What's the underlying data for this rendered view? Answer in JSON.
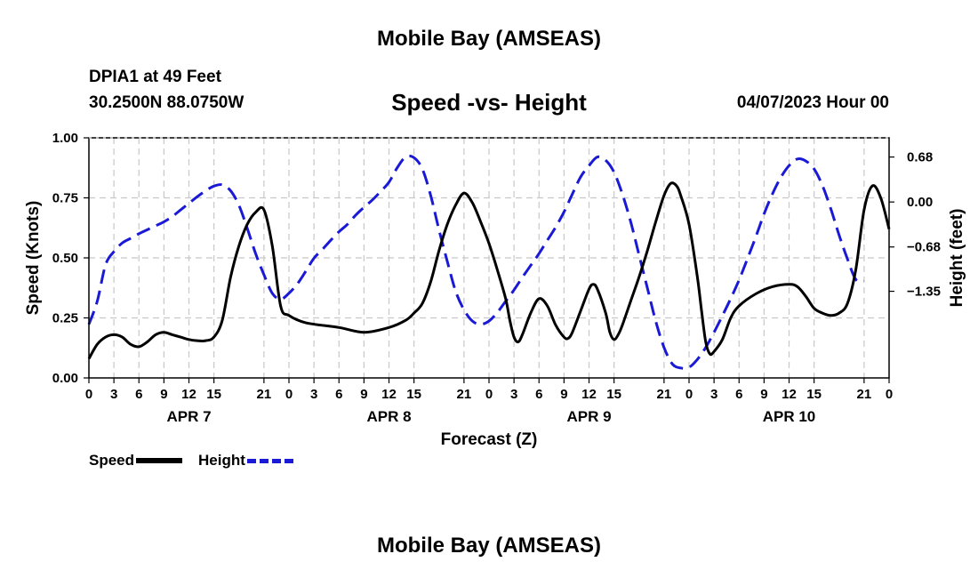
{
  "header": {
    "title": "Mobile Bay (AMSEAS)",
    "station": "DPIA1 at 49 Feet",
    "coords": "30.2500N  88.0750W",
    "subtitle": "Speed -vs- Height",
    "datetime": "04/07/2023 Hour 00"
  },
  "footer": {
    "title": "Mobile Bay (AMSEAS)"
  },
  "legend": {
    "speed_label": "Speed",
    "height_label": "Height"
  },
  "colors": {
    "speed": "#000000",
    "height": "#1a1ad6",
    "grid": "#c8c8c8"
  },
  "chart_data": {
    "type": "line",
    "xlabel": "Forecast (Z)",
    "ylabel": "Speed (Knots)",
    "y2label": "Height (feet)",
    "x_range": [
      0,
      96
    ],
    "x_ticks": [
      {
        "x": 0,
        "label": "0"
      },
      {
        "x": 3,
        "label": "3"
      },
      {
        "x": 6,
        "label": "6"
      },
      {
        "x": 9,
        "label": "9"
      },
      {
        "x": 12,
        "label": "12"
      },
      {
        "x": 15,
        "label": "15"
      },
      {
        "x": 21,
        "label": "21"
      },
      {
        "x": 24,
        "label": "0"
      },
      {
        "x": 27,
        "label": "3"
      },
      {
        "x": 30,
        "label": "6"
      },
      {
        "x": 33,
        "label": "9"
      },
      {
        "x": 36,
        "label": "12"
      },
      {
        "x": 39,
        "label": "15"
      },
      {
        "x": 45,
        "label": "21"
      },
      {
        "x": 48,
        "label": "0"
      },
      {
        "x": 51,
        "label": "3"
      },
      {
        "x": 54,
        "label": "6"
      },
      {
        "x": 57,
        "label": "9"
      },
      {
        "x": 60,
        "label": "12"
      },
      {
        "x": 63,
        "label": "15"
      },
      {
        "x": 69,
        "label": "21"
      },
      {
        "x": 72,
        "label": "0"
      },
      {
        "x": 75,
        "label": "3"
      },
      {
        "x": 78,
        "label": "6"
      },
      {
        "x": 81,
        "label": "9"
      },
      {
        "x": 84,
        "label": "12"
      },
      {
        "x": 87,
        "label": "15"
      },
      {
        "x": 93,
        "label": "21"
      },
      {
        "x": 96,
        "label": "0"
      }
    ],
    "day_labels": [
      {
        "x": 12,
        "label": "APR 7"
      },
      {
        "x": 36,
        "label": "APR 8"
      },
      {
        "x": 60,
        "label": "APR 9"
      },
      {
        "x": 84,
        "label": "APR 10"
      }
    ],
    "ylim": [
      0,
      1
    ],
    "y_ticks": [
      {
        "v": 0.0,
        "label": "0.00"
      },
      {
        "v": 0.25,
        "label": "0.25"
      },
      {
        "v": 0.5,
        "label": "0.50"
      },
      {
        "v": 0.75,
        "label": "0.75"
      },
      {
        "v": 1.0,
        "label": "1.00"
      }
    ],
    "y2lim": [
      -2.66,
      0.97
    ],
    "y2_ticks": [
      {
        "v": 0.68,
        "label": "0.68"
      },
      {
        "v": 0.0,
        "label": "0.00"
      },
      {
        "v": -0.68,
        "label": "-0.68"
      },
      {
        "v": -1.35,
        "label": "-1.35"
      }
    ],
    "series": [
      {
        "name": "Speed",
        "axis": "left",
        "style": "solid",
        "points": [
          [
            0,
            0.08
          ],
          [
            1,
            0.14
          ],
          [
            2,
            0.17
          ],
          [
            3,
            0.18
          ],
          [
            4,
            0.17
          ],
          [
            5,
            0.14
          ],
          [
            6,
            0.13
          ],
          [
            7,
            0.15
          ],
          [
            8,
            0.18
          ],
          [
            9,
            0.19
          ],
          [
            10,
            0.18
          ],
          [
            11,
            0.17
          ],
          [
            12,
            0.16
          ],
          [
            13,
            0.155
          ],
          [
            14,
            0.155
          ],
          [
            15,
            0.17
          ],
          [
            16,
            0.24
          ],
          [
            17,
            0.42
          ],
          [
            18,
            0.55
          ],
          [
            19,
            0.64
          ],
          [
            20,
            0.69
          ],
          [
            21,
            0.7
          ],
          [
            22,
            0.55
          ],
          [
            23,
            0.3
          ],
          [
            24,
            0.26
          ],
          [
            26,
            0.23
          ],
          [
            30,
            0.21
          ],
          [
            33,
            0.19
          ],
          [
            36,
            0.21
          ],
          [
            38,
            0.24
          ],
          [
            39,
            0.27
          ],
          [
            40,
            0.31
          ],
          [
            41,
            0.4
          ],
          [
            42,
            0.53
          ],
          [
            43,
            0.64
          ],
          [
            44,
            0.72
          ],
          [
            45,
            0.77
          ],
          [
            46,
            0.73
          ],
          [
            47,
            0.65
          ],
          [
            48,
            0.56
          ],
          [
            49,
            0.45
          ],
          [
            50,
            0.33
          ],
          [
            50.5,
            0.24
          ],
          [
            51,
            0.17
          ],
          [
            51.5,
            0.15
          ],
          [
            52,
            0.18
          ],
          [
            53,
            0.27
          ],
          [
            54,
            0.33
          ],
          [
            55,
            0.3
          ],
          [
            56,
            0.22
          ],
          [
            57,
            0.17
          ],
          [
            57.5,
            0.165
          ],
          [
            58,
            0.19
          ],
          [
            59,
            0.28
          ],
          [
            60,
            0.37
          ],
          [
            60.5,
            0.39
          ],
          [
            61,
            0.37
          ],
          [
            62,
            0.27
          ],
          [
            62.5,
            0.19
          ],
          [
            63,
            0.16
          ],
          [
            63.5,
            0.18
          ],
          [
            64,
            0.22
          ],
          [
            65,
            0.32
          ],
          [
            66,
            0.42
          ],
          [
            67,
            0.53
          ],
          [
            68,
            0.65
          ],
          [
            69,
            0.76
          ],
          [
            69.8,
            0.81
          ],
          [
            70.5,
            0.8
          ],
          [
            71,
            0.76
          ],
          [
            72,
            0.64
          ],
          [
            73,
            0.42
          ],
          [
            73.5,
            0.28
          ],
          [
            74,
            0.15
          ],
          [
            74.5,
            0.1
          ],
          [
            75,
            0.11
          ],
          [
            76,
            0.16
          ],
          [
            77,
            0.25
          ],
          [
            78,
            0.3
          ],
          [
            80,
            0.35
          ],
          [
            82,
            0.38
          ],
          [
            84,
            0.39
          ],
          [
            85,
            0.38
          ],
          [
            86,
            0.34
          ],
          [
            87,
            0.29
          ],
          [
            88,
            0.27
          ],
          [
            89,
            0.26
          ],
          [
            90,
            0.27
          ],
          [
            91,
            0.31
          ],
          [
            92,
            0.45
          ],
          [
            93,
            0.7
          ],
          [
            94,
            0.8
          ],
          [
            95,
            0.75
          ],
          [
            96,
            0.62
          ]
        ]
      },
      {
        "name": "Height",
        "axis": "right",
        "style": "dashed",
        "points": [
          [
            0,
            -1.85
          ],
          [
            1,
            -1.5
          ],
          [
            2,
            -0.95
          ],
          [
            3,
            -0.75
          ],
          [
            4,
            -0.62
          ],
          [
            5,
            -0.55
          ],
          [
            6,
            -0.48
          ],
          [
            7,
            -0.42
          ],
          [
            8,
            -0.36
          ],
          [
            9,
            -0.3
          ],
          [
            10,
            -0.22
          ],
          [
            11,
            -0.12
          ],
          [
            12,
            -0.02
          ],
          [
            13,
            0.08
          ],
          [
            14,
            0.17
          ],
          [
            15,
            0.24
          ],
          [
            16,
            0.26
          ],
          [
            17,
            0.17
          ],
          [
            18,
            -0.05
          ],
          [
            19,
            -0.4
          ],
          [
            20,
            -0.78
          ],
          [
            21,
            -1.1
          ],
          [
            22,
            -1.38
          ],
          [
            23,
            -1.47
          ],
          [
            24,
            -1.38
          ],
          [
            25,
            -1.24
          ],
          [
            26,
            -1.05
          ],
          [
            27,
            -0.85
          ],
          [
            28,
            -0.72
          ],
          [
            29,
            -0.58
          ],
          [
            30,
            -0.45
          ],
          [
            31,
            -0.34
          ],
          [
            32,
            -0.2
          ],
          [
            33,
            -0.08
          ],
          [
            34,
            0.03
          ],
          [
            35,
            0.16
          ],
          [
            36,
            0.3
          ],
          [
            37,
            0.52
          ],
          [
            38,
            0.68
          ],
          [
            39,
            0.67
          ],
          [
            40,
            0.5
          ],
          [
            41,
            0.1
          ],
          [
            42,
            -0.42
          ],
          [
            43,
            -0.9
          ],
          [
            44,
            -1.35
          ],
          [
            45,
            -1.63
          ],
          [
            46,
            -1.8
          ],
          [
            47,
            -1.85
          ],
          [
            48,
            -1.8
          ],
          [
            49,
            -1.67
          ],
          [
            50,
            -1.5
          ],
          [
            51,
            -1.33
          ],
          [
            52,
            -1.14
          ],
          [
            53,
            -0.96
          ],
          [
            54,
            -0.78
          ],
          [
            55,
            -0.58
          ],
          [
            56,
            -0.38
          ],
          [
            57,
            -0.15
          ],
          [
            58,
            0.12
          ],
          [
            59,
            0.38
          ],
          [
            60,
            0.55
          ],
          [
            61,
            0.68
          ],
          [
            62,
            0.63
          ],
          [
            63,
            0.45
          ],
          [
            64,
            0.12
          ],
          [
            65,
            -0.3
          ],
          [
            66,
            -0.8
          ],
          [
            67,
            -1.3
          ],
          [
            68,
            -1.8
          ],
          [
            69,
            -2.2
          ],
          [
            70,
            -2.45
          ],
          [
            71,
            -2.51
          ],
          [
            72,
            -2.5
          ],
          [
            73,
            -2.38
          ],
          [
            74,
            -2.2
          ],
          [
            75,
            -1.97
          ],
          [
            76,
            -1.72
          ],
          [
            77,
            -1.46
          ],
          [
            78,
            -1.18
          ],
          [
            79,
            -0.86
          ],
          [
            80,
            -0.53
          ],
          [
            81,
            -0.18
          ],
          [
            82,
            0.12
          ],
          [
            83,
            0.37
          ],
          [
            84,
            0.55
          ],
          [
            85,
            0.65
          ],
          [
            86,
            0.62
          ],
          [
            87,
            0.5
          ],
          [
            88,
            0.25
          ],
          [
            89,
            -0.1
          ],
          [
            90,
            -0.5
          ],
          [
            91,
            -0.86
          ],
          [
            92,
            -1.17
          ],
          [
            93,
            -1.2
          ]
        ]
      }
    ]
  }
}
